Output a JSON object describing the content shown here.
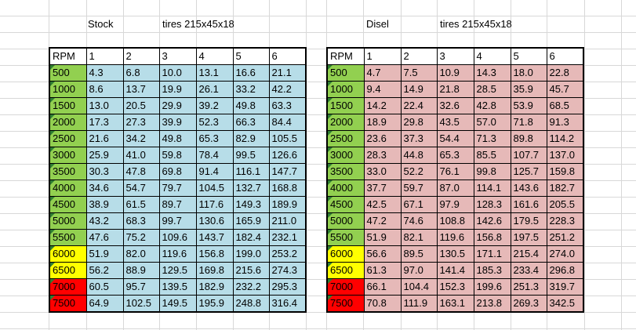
{
  "stock": {
    "title": "Stock",
    "subtitle": "tires 215x45x18",
    "header": [
      "RPM",
      "1",
      "2",
      "3",
      "4",
      "5",
      "6"
    ],
    "rows": [
      [
        "500",
        "4.3",
        "6.8",
        "10.0",
        "13.1",
        "16.6",
        "21.1"
      ],
      [
        "1000",
        "8.6",
        "13.7",
        "19.9",
        "26.1",
        "33.2",
        "42.2"
      ],
      [
        "1500",
        "13.0",
        "20.5",
        "29.9",
        "39.2",
        "49.8",
        "63.3"
      ],
      [
        "2000",
        "17.3",
        "27.3",
        "39.9",
        "52.3",
        "66.3",
        "84.4"
      ],
      [
        "2500",
        "21.6",
        "34.2",
        "49.8",
        "65.3",
        "82.9",
        "105.5"
      ],
      [
        "3000",
        "25.9",
        "41.0",
        "59.8",
        "78.4",
        "99.5",
        "126.6"
      ],
      [
        "3500",
        "30.3",
        "47.8",
        "69.8",
        "91.4",
        "116.1",
        "147.7"
      ],
      [
        "4000",
        "34.6",
        "54.7",
        "79.7",
        "104.5",
        "132.7",
        "168.8"
      ],
      [
        "4500",
        "38.9",
        "61.5",
        "89.7",
        "117.6",
        "149.3",
        "189.9"
      ],
      [
        "5000",
        "43.2",
        "68.3",
        "99.7",
        "130.6",
        "165.9",
        "211.0"
      ],
      [
        "5500",
        "47.6",
        "75.2",
        "109.6",
        "143.7",
        "182.4",
        "232.1"
      ],
      [
        "6000",
        "51.9",
        "82.0",
        "119.6",
        "156.8",
        "199.0",
        "253.2"
      ],
      [
        "6500",
        "56.2",
        "88.9",
        "129.5",
        "169.8",
        "215.6",
        "274.3"
      ],
      [
        "7000",
        "60.5",
        "95.7",
        "139.5",
        "182.9",
        "232.2",
        "295.3"
      ],
      [
        "7500",
        "64.9",
        "102.5",
        "149.5",
        "195.9",
        "248.8",
        "316.4"
      ]
    ],
    "fill_color": "#b7dde8"
  },
  "diesel": {
    "title": "Disel",
    "subtitle": "tires 215x45x18",
    "header": [
      "RPM",
      "1",
      "2",
      "3",
      "4",
      "5",
      "6"
    ],
    "rows": [
      [
        "500",
        "4.7",
        "7.5",
        "10.9",
        "14.3",
        "18.0",
        "22.8"
      ],
      [
        "1000",
        "9.4",
        "14.9",
        "21.8",
        "28.5",
        "35.9",
        "45.7"
      ],
      [
        "1500",
        "14.2",
        "22.4",
        "32.6",
        "42.8",
        "53.9",
        "68.5"
      ],
      [
        "2000",
        "18.9",
        "29.8",
        "43.5",
        "57.0",
        "71.8",
        "91.3"
      ],
      [
        "2500",
        "23.6",
        "37.3",
        "54.4",
        "71.3",
        "89.8",
        "114.2"
      ],
      [
        "3000",
        "28.3",
        "44.8",
        "65.3",
        "85.5",
        "107.7",
        "137.0"
      ],
      [
        "3500",
        "33.0",
        "52.2",
        "76.1",
        "99.8",
        "125.7",
        "159.8"
      ],
      [
        "4000",
        "37.7",
        "59.7",
        "87.0",
        "114.1",
        "143.6",
        "182.7"
      ],
      [
        "4500",
        "42.5",
        "67.1",
        "97.9",
        "128.3",
        "161.6",
        "205.5"
      ],
      [
        "5000",
        "47.2",
        "74.6",
        "108.8",
        "142.6",
        "179.5",
        "228.3"
      ],
      [
        "5500",
        "51.9",
        "82.1",
        "119.6",
        "156.8",
        "197.5",
        "251.2"
      ],
      [
        "6000",
        "56.6",
        "89.5",
        "130.5",
        "171.1",
        "215.4",
        "274.0"
      ],
      [
        "6500",
        "61.3",
        "97.0",
        "141.4",
        "185.3",
        "233.4",
        "296.8"
      ],
      [
        "7000",
        "66.1",
        "104.4",
        "152.3",
        "199.6",
        "251.3",
        "319.7"
      ],
      [
        "7500",
        "70.8",
        "111.9",
        "163.1",
        "213.8",
        "269.3",
        "342.5"
      ]
    ],
    "fill_color": "#e6b9b8"
  },
  "rpm_colors": {
    "normal": "green",
    "warning": "yellow",
    "redline": "red",
    "warning_rpms": [
      "6000",
      "6500"
    ],
    "redline_rpms": [
      "7000",
      "7500"
    ]
  }
}
